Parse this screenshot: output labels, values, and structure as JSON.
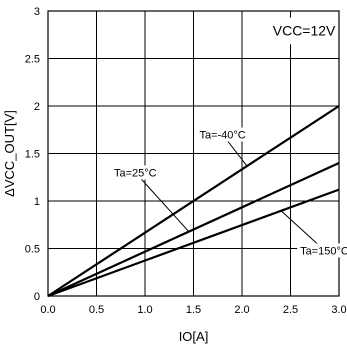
{
  "chart_data": {
    "type": "line",
    "title": "",
    "xlabel": "IO[A]",
    "ylabel": "ΔVCC_OUT[V]",
    "xlim": [
      0,
      3.0
    ],
    "ylim": [
      0,
      3
    ],
    "x_ticks": [
      0.0,
      0.5,
      1.0,
      1.5,
      2.0,
      2.5,
      3.0
    ],
    "x_tick_labels": [
      "0.0",
      "0.5",
      "1.0",
      "1.5",
      "2.0",
      "2.5",
      "3.0"
    ],
    "y_ticks": [
      0,
      0.5,
      1,
      1.5,
      2,
      2.5,
      3
    ],
    "y_tick_labels": [
      "0",
      "0.5",
      "1",
      "1.5",
      "2",
      "2.5",
      "3"
    ],
    "grid": true,
    "box_label": "VCC=12V",
    "series": [
      {
        "name": "Ta=-40°C",
        "x": [
          0,
          3.0
        ],
        "y": [
          0,
          2.0
        ]
      },
      {
        "name": "Ta=25°C",
        "x": [
          0,
          3.0
        ],
        "y": [
          0,
          1.4
        ]
      },
      {
        "name": "Ta=150°C",
        "x": [
          0,
          3.0
        ],
        "y": [
          0,
          1.12
        ]
      }
    ],
    "annotations": [
      {
        "text": "Ta=-40°C",
        "series": 0,
        "point": [
          2.05,
          1.37
        ],
        "label_at": [
          1.8,
          1.7
        ]
      },
      {
        "text": "Ta=25°C",
        "series": 1,
        "point": [
          1.45,
          0.68
        ],
        "label_at": [
          0.9,
          1.3
        ]
      },
      {
        "text": "Ta=150°C",
        "series": 2,
        "point": [
          2.4,
          0.9
        ],
        "label_at": [
          2.85,
          0.48
        ]
      }
    ]
  }
}
